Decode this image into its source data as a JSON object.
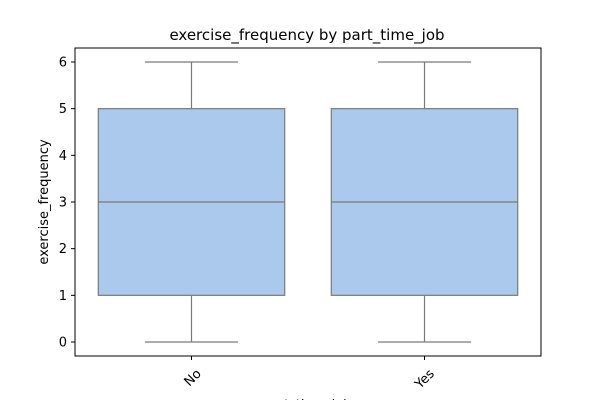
{
  "chart_data": {
    "type": "box",
    "title": "exercise_frequency by part_time_job",
    "xlabel": "part_time_job",
    "ylabel": "exercise_frequency",
    "categories": [
      "No",
      "Yes"
    ],
    "boxes": [
      {
        "category": "No",
        "whisker_low": 0,
        "q1": 1,
        "median": 3,
        "q3": 5,
        "whisker_high": 6
      },
      {
        "category": "Yes",
        "whisker_low": 0,
        "q1": 1,
        "median": 3,
        "q3": 5,
        "whisker_high": 6
      }
    ],
    "yticks": [
      0,
      1,
      2,
      3,
      4,
      5,
      6
    ],
    "ylim": [
      -0.3,
      6.3
    ],
    "grid": false,
    "xtick_rotation_deg": 45,
    "colors": {
      "box_fill": "#abc9ed",
      "box_edge": "#7a7a7a",
      "axis": "#000000",
      "background": "#ffffff"
    }
  }
}
